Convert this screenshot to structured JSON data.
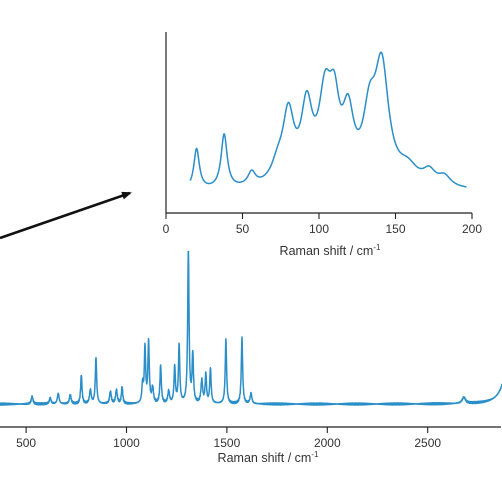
{
  "chart_data": [
    {
      "id": "main",
      "type": "line",
      "xlabel": "Raman shift / cm",
      "xlabel_superscript": "-1",
      "xlim": [
        370,
        2870
      ],
      "xticks": [
        500,
        1000,
        1500,
        2000,
        2500
      ],
      "xtick_labels": [
        "500",
        "1000",
        "1500",
        "2000",
        "2500"
      ],
      "ylim": [
        0,
        1
      ],
      "baseline": 0.045,
      "color": "#2a8ec8",
      "peaks": [
        {
          "x": 530,
          "y": 0.05,
          "w": 5
        },
        {
          "x": 620,
          "y": 0.04,
          "w": 5
        },
        {
          "x": 660,
          "y": 0.07,
          "w": 5
        },
        {
          "x": 720,
          "y": 0.06,
          "w": 5
        },
        {
          "x": 775,
          "y": 0.19,
          "w": 4
        },
        {
          "x": 820,
          "y": 0.09,
          "w": 5
        },
        {
          "x": 848,
          "y": 0.3,
          "w": 4
        },
        {
          "x": 920,
          "y": 0.08,
          "w": 5
        },
        {
          "x": 950,
          "y": 0.09,
          "w": 5
        },
        {
          "x": 978,
          "y": 0.11,
          "w": 4
        },
        {
          "x": 1080,
          "y": 0.12,
          "w": 4
        },
        {
          "x": 1092,
          "y": 0.36,
          "w": 4
        },
        {
          "x": 1110,
          "y": 0.4,
          "w": 4
        },
        {
          "x": 1130,
          "y": 0.1,
          "w": 5
        },
        {
          "x": 1170,
          "y": 0.25,
          "w": 4
        },
        {
          "x": 1210,
          "y": 0.08,
          "w": 5
        },
        {
          "x": 1240,
          "y": 0.24,
          "w": 4
        },
        {
          "x": 1262,
          "y": 0.38,
          "w": 4
        },
        {
          "x": 1308,
          "y": 1.0,
          "w": 4
        },
        {
          "x": 1330,
          "y": 0.32,
          "w": 4
        },
        {
          "x": 1375,
          "y": 0.15,
          "w": 5
        },
        {
          "x": 1395,
          "y": 0.19,
          "w": 4
        },
        {
          "x": 1418,
          "y": 0.23,
          "w": 4
        },
        {
          "x": 1495,
          "y": 0.42,
          "w": 4
        },
        {
          "x": 1575,
          "y": 0.43,
          "w": 4
        },
        {
          "x": 1620,
          "y": 0.07,
          "w": 5
        },
        {
          "x": 2680,
          "y": 0.04,
          "w": 10
        },
        {
          "x": 2905,
          "y": 0.3,
          "w": 30
        }
      ]
    },
    {
      "id": "inset",
      "type": "line",
      "xlabel": "Raman shift / cm",
      "xlabel_superscript": "-1",
      "xlim": [
        0,
        200
      ],
      "xticks": [
        0,
        50,
        100,
        150,
        200
      ],
      "xtick_labels": [
        "0",
        "50",
        "100",
        "150",
        "200"
      ],
      "ylim": [
        0,
        1
      ],
      "baseline": 0.05,
      "color": "#2a8ec8",
      "peaks": [
        {
          "x": 20,
          "y": 0.24,
          "w": 2.2
        },
        {
          "x": 38,
          "y": 0.32,
          "w": 2.4
        },
        {
          "x": 56,
          "y": 0.08,
          "w": 3
        },
        {
          "x": 73,
          "y": 0.1,
          "w": 5
        },
        {
          "x": 80,
          "y": 0.4,
          "w": 4.5
        },
        {
          "x": 92,
          "y": 0.43,
          "w": 4.5
        },
        {
          "x": 104,
          "y": 0.48,
          "w": 5
        },
        {
          "x": 110,
          "y": 0.37,
          "w": 4
        },
        {
          "x": 119,
          "y": 0.37,
          "w": 4.5
        },
        {
          "x": 133,
          "y": 0.35,
          "w": 5
        },
        {
          "x": 141,
          "y": 0.67,
          "w": 5.5
        },
        {
          "x": 158,
          "y": 0.1,
          "w": 8
        },
        {
          "x": 172,
          "y": 0.08,
          "w": 5
        },
        {
          "x": 182,
          "y": 0.06,
          "w": 5
        }
      ]
    }
  ]
}
